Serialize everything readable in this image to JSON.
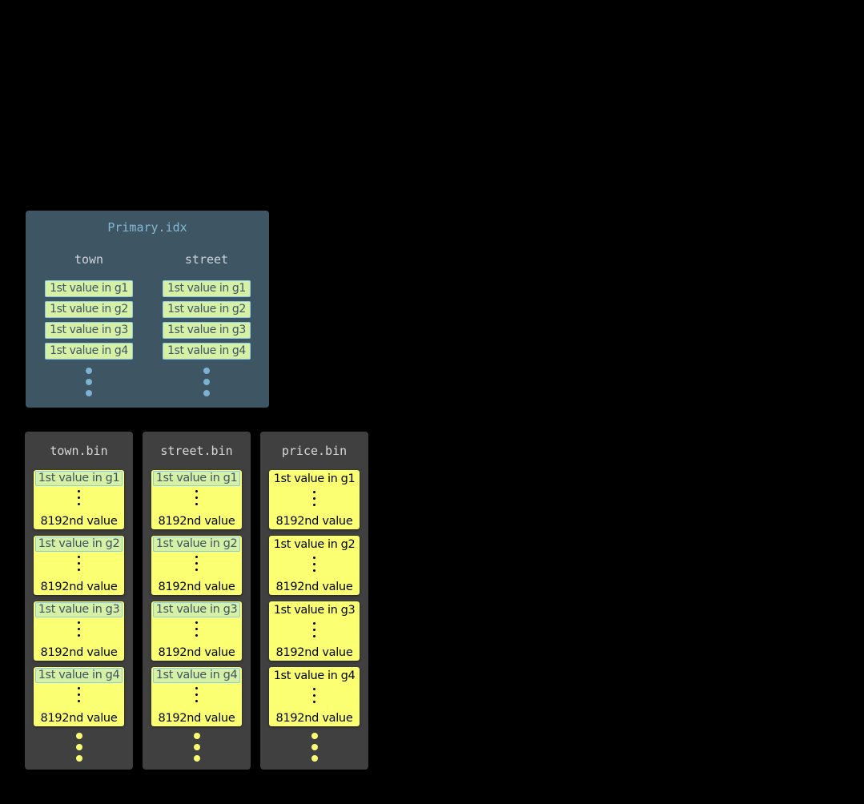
{
  "primary_index": {
    "title": "Primary.idx",
    "columns": [
      {
        "name": "town",
        "marks": [
          "1st value in g1",
          "1st value in g2",
          "1st value in g3",
          "1st value in g4"
        ]
      },
      {
        "name": "street",
        "marks": [
          "1st value in g1",
          "1st value in g2",
          "1st value in g3",
          "1st value in g4"
        ]
      }
    ]
  },
  "bin_files": [
    {
      "title": "town.bin",
      "highlight_first": true,
      "granules": [
        {
          "first": "1st value in g1",
          "last": "8192nd value"
        },
        {
          "first": "1st value in g2",
          "last": "8192nd value"
        },
        {
          "first": "1st value in g3",
          "last": "8192nd value"
        },
        {
          "first": "1st value in g4",
          "last": "8192nd value"
        }
      ]
    },
    {
      "title": "street.bin",
      "highlight_first": true,
      "granules": [
        {
          "first": "1st value in g1",
          "last": "8192nd value"
        },
        {
          "first": "1st value in g2",
          "last": "8192nd value"
        },
        {
          "first": "1st value in g3",
          "last": "8192nd value"
        },
        {
          "first": "1st value in g4",
          "last": "8192nd value"
        }
      ]
    },
    {
      "title": "price.bin",
      "highlight_first": false,
      "granules": [
        {
          "first": "1st value in g1",
          "last": "8192nd value"
        },
        {
          "first": "1st value in g2",
          "last": "8192nd value"
        },
        {
          "first": "1st value in g3",
          "last": "8192nd value"
        },
        {
          "first": "1st value in g4",
          "last": "8192nd value"
        }
      ]
    }
  ],
  "colors": {
    "primary_bg": "#3e5564",
    "bin_bg": "#404040",
    "granule": "#fbff72",
    "index_mark": "#d6f0a6",
    "mark_border": "#8ccbe6"
  }
}
